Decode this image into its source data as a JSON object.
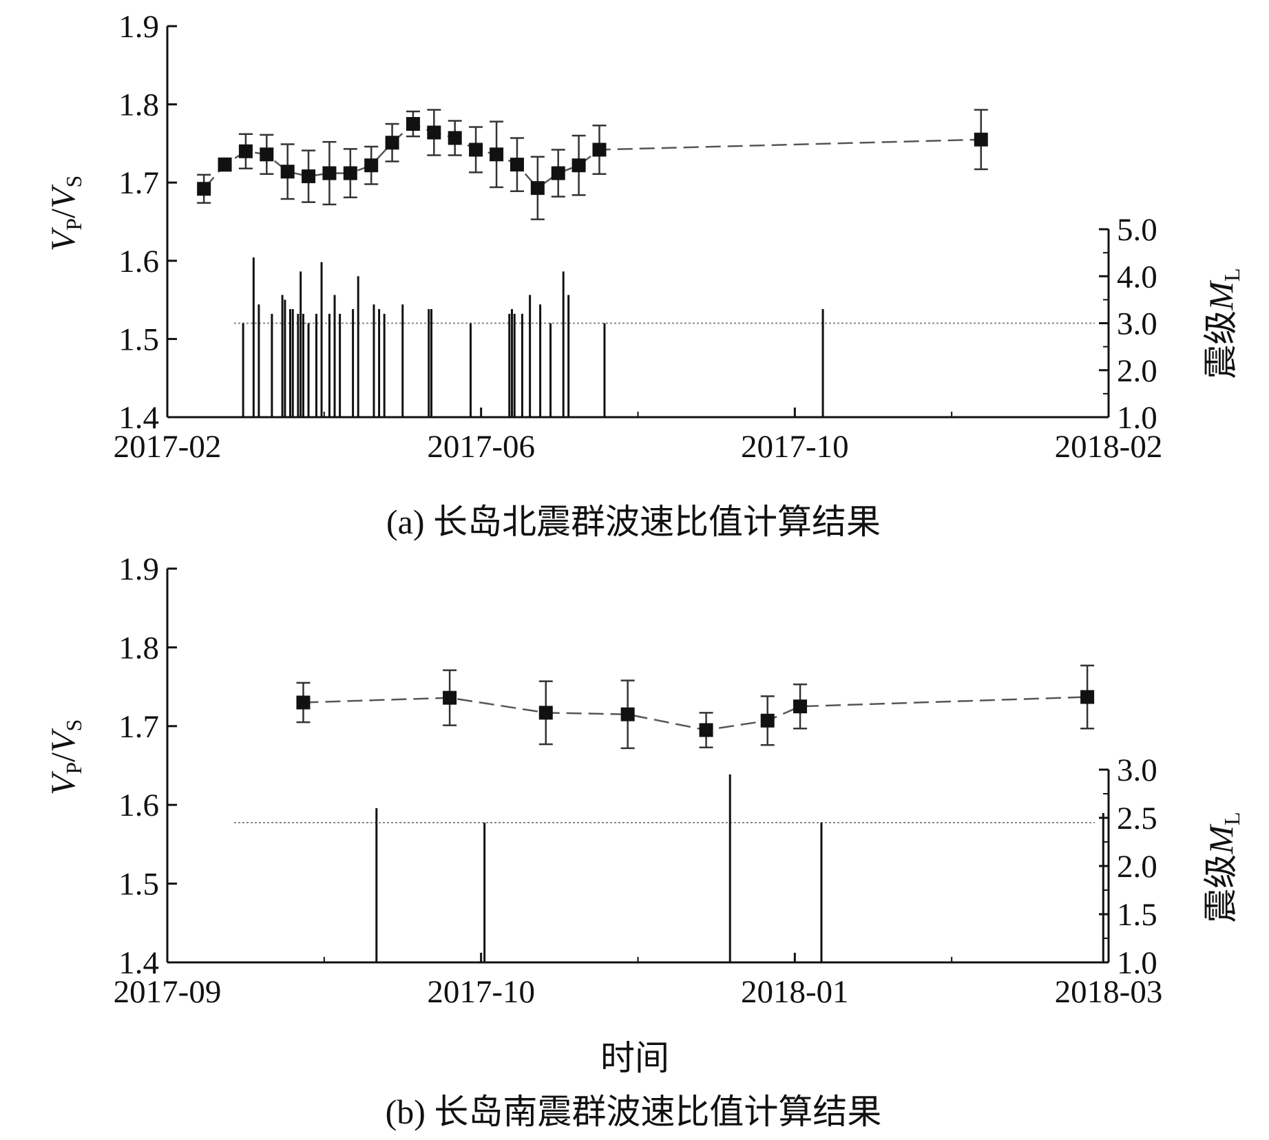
{
  "colors": {
    "ink": "#111111",
    "vpvs_line": "#555555",
    "error_bar": "#333333",
    "reference_line": "#888888",
    "magnitude_bar": "#111111"
  },
  "chart_data": [
    {
      "id": "a",
      "type": "scatter",
      "caption": "(a) 长岛北震群波速比值计算结果",
      "x_axis": {
        "kind": "date",
        "ticks": [
          "2017-02",
          "2017-06",
          "2017-10",
          "2018-02"
        ],
        "range": [
          "2017-02-01",
          "2018-02-01"
        ]
      },
      "y_axis": {
        "label_main": "V",
        "label_sub1": "P",
        "label_slash": "/",
        "label_sub2": "S",
        "ylim": [
          1.4,
          1.9
        ],
        "ticks": [
          "1.4",
          "1.5",
          "1.6",
          "1.7",
          "1.8",
          "1.9"
        ]
      },
      "y2_axis": {
        "label_text": "震级",
        "label_main": "M",
        "label_sub": "L",
        "ylim": [
          1.0,
          5.0
        ],
        "ticks": [
          "1.0",
          "2.0",
          "3.0",
          "4.0",
          "5.0"
        ]
      },
      "reference_line": {
        "axis": "y2",
        "value": 3.0,
        "style": "dotted"
      },
      "series": [
        {
          "kind": "vpvs",
          "points": [
            {
              "date": "2017-02-15",
              "y": 1.692,
              "err": 0.018
            },
            {
              "date": "2017-02-23",
              "y": 1.723,
              "err": 0.008
            },
            {
              "date": "2017-03-03",
              "y": 1.74,
              "err": 0.022
            },
            {
              "date": "2017-03-11",
              "y": 1.736,
              "err": 0.025
            },
            {
              "date": "2017-03-19",
              "y": 1.714,
              "err": 0.035
            },
            {
              "date": "2017-03-27",
              "y": 1.708,
              "err": 0.033
            },
            {
              "date": "2017-04-04",
              "y": 1.712,
              "err": 0.04
            },
            {
              "date": "2017-04-12",
              "y": 1.712,
              "err": 0.031
            },
            {
              "date": "2017-04-20",
              "y": 1.722,
              "err": 0.024
            },
            {
              "date": "2017-04-28",
              "y": 1.751,
              "err": 0.024
            },
            {
              "date": "2017-05-06",
              "y": 1.775,
              "err": 0.016
            },
            {
              "date": "2017-05-14",
              "y": 1.764,
              "err": 0.029
            },
            {
              "date": "2017-05-22",
              "y": 1.757,
              "err": 0.022
            },
            {
              "date": "2017-05-30",
              "y": 1.742,
              "err": 0.029
            },
            {
              "date": "2017-06-07",
              "y": 1.736,
              "err": 0.042
            },
            {
              "date": "2017-06-15",
              "y": 1.723,
              "err": 0.034
            },
            {
              "date": "2017-06-23",
              "y": 1.693,
              "err": 0.04
            },
            {
              "date": "2017-07-01",
              "y": 1.712,
              "err": 0.03
            },
            {
              "date": "2017-07-09",
              "y": 1.722,
              "err": 0.038
            },
            {
              "date": "2017-07-17",
              "y": 1.742,
              "err": 0.031
            },
            {
              "date": "2017-12-13",
              "y": 1.755,
              "err": 0.038
            }
          ]
        },
        {
          "kind": "magnitude",
          "axis": "y2",
          "events": [
            {
              "date": "2017-03-02",
              "m": 3.0
            },
            {
              "date": "2017-03-06",
              "m": 4.4
            },
            {
              "date": "2017-03-08",
              "m": 3.4
            },
            {
              "date": "2017-03-13",
              "m": 3.2
            },
            {
              "date": "2017-03-17",
              "m": 3.6
            },
            {
              "date": "2017-03-18",
              "m": 3.5
            },
            {
              "date": "2017-03-20",
              "m": 3.3
            },
            {
              "date": "2017-03-21",
              "m": 3.3
            },
            {
              "date": "2017-03-23",
              "m": 3.2
            },
            {
              "date": "2017-03-24",
              "m": 4.1
            },
            {
              "date": "2017-03-25",
              "m": 3.2
            },
            {
              "date": "2017-03-27",
              "m": 3.0
            },
            {
              "date": "2017-03-30",
              "m": 3.2
            },
            {
              "date": "2017-04-01",
              "m": 4.3
            },
            {
              "date": "2017-04-04",
              "m": 3.2
            },
            {
              "date": "2017-04-06",
              "m": 3.6
            },
            {
              "date": "2017-04-08",
              "m": 3.2
            },
            {
              "date": "2017-04-13",
              "m": 3.3
            },
            {
              "date": "2017-04-15",
              "m": 4.0
            },
            {
              "date": "2017-04-21",
              "m": 3.4
            },
            {
              "date": "2017-04-23",
              "m": 3.3
            },
            {
              "date": "2017-04-25",
              "m": 3.2
            },
            {
              "date": "2017-05-02",
              "m": 3.4
            },
            {
              "date": "2017-05-12",
              "m": 3.3
            },
            {
              "date": "2017-05-13",
              "m": 3.3
            },
            {
              "date": "2017-05-28",
              "m": 3.0
            },
            {
              "date": "2017-06-12",
              "m": 3.2
            },
            {
              "date": "2017-06-13",
              "m": 3.3
            },
            {
              "date": "2017-06-14",
              "m": 3.2
            },
            {
              "date": "2017-06-17",
              "m": 3.2
            },
            {
              "date": "2017-06-20",
              "m": 3.6
            },
            {
              "date": "2017-06-24",
              "m": 3.4
            },
            {
              "date": "2017-06-28",
              "m": 3.0
            },
            {
              "date": "2017-07-03",
              "m": 4.1
            },
            {
              "date": "2017-07-05",
              "m": 3.6
            },
            {
              "date": "2017-07-19",
              "m": 3.0
            },
            {
              "date": "2017-10-12",
              "m": 3.3
            }
          ]
        }
      ]
    },
    {
      "id": "b",
      "type": "scatter",
      "caption": "(b) 长岛南震群波速比值计算结果",
      "xlabel": "时间",
      "x_axis": {
        "kind": "date",
        "ticks": [
          "2017-09",
          "2017-10",
          "2018-01",
          "2018-03"
        ],
        "range": [
          "2017-09-01",
          "2018-03-01"
        ]
      },
      "y_axis": {
        "label_main": "V",
        "label_sub1": "P",
        "label_slash": "/",
        "label_sub2": "S",
        "ylim": [
          1.4,
          1.9
        ],
        "ticks": [
          "1.4",
          "1.5",
          "1.6",
          "1.7",
          "1.8",
          "1.9"
        ]
      },
      "y2_axis": {
        "label_text": "震级",
        "label_main": "M",
        "label_sub": "L",
        "ylim": [
          1.0,
          3.0
        ],
        "ticks": [
          "1.0",
          "1.5",
          "2.0",
          "2.5",
          "3.0"
        ]
      },
      "reference_line": {
        "axis": "y2",
        "value": 2.45,
        "style": "dotted"
      },
      "series": [
        {
          "kind": "vpvs",
          "points": [
            {
              "date": "2017-09-14",
              "y": 1.73,
              "err": 0.025
            },
            {
              "date": "2017-09-28",
              "y": 1.736,
              "err": 0.035
            },
            {
              "date": "2017-10-20",
              "y": 1.717,
              "err": 0.04
            },
            {
              "date": "2017-11-13",
              "y": 1.715,
              "err": 0.043
            },
            {
              "date": "2017-12-06",
              "y": 1.695,
              "err": 0.022
            },
            {
              "date": "2017-12-24",
              "y": 1.707,
              "err": 0.031
            },
            {
              "date": "2018-01-02",
              "y": 1.725,
              "err": 0.028
            },
            {
              "date": "2018-02-25",
              "y": 1.737,
              "err": 0.04
            }
          ]
        },
        {
          "kind": "magnitude",
          "axis": "y2",
          "events": [
            {
              "date": "2017-09-21",
              "m": 2.6
            },
            {
              "date": "2017-10-02",
              "m": 2.45
            },
            {
              "date": "2017-12-13",
              "m": 2.95
            },
            {
              "date": "2018-01-06",
              "m": 2.45
            },
            {
              "date": "2018-02-28",
              "m": 2.55
            }
          ]
        }
      ]
    }
  ]
}
